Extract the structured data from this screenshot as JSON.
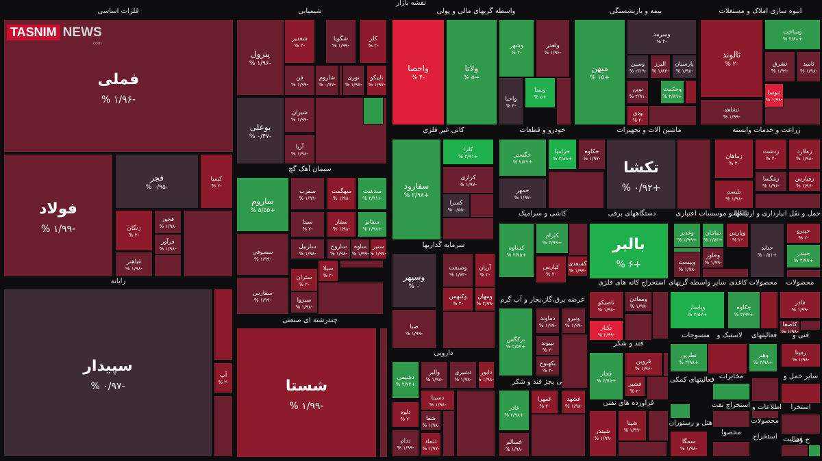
{
  "header": {
    "title": "نقشه بازار"
  },
  "logo": {
    "brand": "TASNIM",
    "suffix": "NEWS",
    "domain": ".com"
  },
  "colors": {
    "background": "#0d0d0f",
    "dark_red": "#6b1f2e",
    "red": "#8d1a2b",
    "bright_red": "#e0203a",
    "neutral": "#3d2b35",
    "green": "#2f9a4c",
    "bright_green": "#1fb04d"
  },
  "sectors": [
    {
      "label": "فلزات اساسی"
    },
    {
      "label": "شیمیایی"
    },
    {
      "label": "واسطه گریهای مالی و پولی"
    },
    {
      "label": "بیمه و بازنشستگی"
    },
    {
      "label": "انبوه سازی املاک و مستغلات"
    },
    {
      "label": "سیمان آهک گچ"
    },
    {
      "label": "کانی غیر فلزی"
    },
    {
      "label": "خودرو و قطعات"
    },
    {
      "label": "ماشین آلات و تجهیزات"
    },
    {
      "label": "زراعت و خدمات وابسته"
    },
    {
      "label": "رایانه"
    },
    {
      "label": "سرمایه گذاریها"
    },
    {
      "label": "کاشی و سرامیک"
    },
    {
      "label": "دستگاههای برقی"
    },
    {
      "label": "بانکها و موسسات اعتباری"
    },
    {
      "label": "حمل و نقل انبارداری و ارتباطات"
    },
    {
      "label": "چندرشته ای صنعتی"
    },
    {
      "label": "استخراج کانه های فلزی"
    },
    {
      "label": "سایر واسطه گریهای"
    },
    {
      "label": "محصولات کاغذی"
    },
    {
      "label": "محصولات"
    },
    {
      "label": "عرضه برق،گاز،بخار و آب گرم"
    },
    {
      "label": "قند و شکر"
    },
    {
      "label": "منسوجات"
    },
    {
      "label": "لاستیک و"
    },
    {
      "label": "فعالیتهای"
    },
    {
      "label": "فنی و"
    },
    {
      "label": "دارویی"
    },
    {
      "label": "غذایی بجز قند و شکر"
    },
    {
      "label": "فرآورده های نفتی"
    },
    {
      "label": "فعالیتهای کمکی"
    },
    {
      "label": "مخابرات"
    },
    {
      "label": "سایر حمل و"
    },
    {
      "label": "استخراج نفت"
    },
    {
      "label": "اطلاعات و"
    },
    {
      "label": "استخرا"
    },
    {
      "label": "محصوا"
    },
    {
      "label": "هتل و رستوران"
    },
    {
      "label": "محصولات"
    },
    {
      "label": "استخراج"
    },
    {
      "label": "فعالیت"
    },
    {
      "label": "خ وسا"
    }
  ],
  "tiles": [
    {
      "name": "فملی",
      "change": "-۱/۹۶ %"
    },
    {
      "name": "فولاد",
      "change": "-۱/۹۹ %"
    },
    {
      "name": "فجر",
      "change": "-۰/۹۵ %"
    },
    {
      "name": "کیمیا",
      "change": "-۲ %"
    },
    {
      "name": "زنگان",
      "change": "-۲ %"
    },
    {
      "name": "فخوز",
      "change": "-۱/۹۸ %"
    },
    {
      "name": "فرآور",
      "change": "-۱/۹۸ %"
    },
    {
      "name": "فباهنر",
      "change": "-۱/۹۸ %"
    },
    {
      "name": "سپیدار",
      "change": "-۰/۹۷ %"
    },
    {
      "name": "آپ",
      "change": "-۲ %"
    },
    {
      "name": "پترول",
      "change": "-۱/۹۶ %"
    },
    {
      "name": "شغدیر",
      "change": "-۲ %"
    },
    {
      "name": "شگویا",
      "change": "-۱/۹۹ %"
    },
    {
      "name": "کلر",
      "change": "-۲ %"
    },
    {
      "name": "فن",
      "change": "-۱/۹۹ %"
    },
    {
      "name": "شاروم",
      "change": "-۰/۷۷ %"
    },
    {
      "name": "نوری",
      "change": "-۱/۹۸ %"
    },
    {
      "name": "تاپیکو",
      "change": "-۱/۹۷ %"
    },
    {
      "name": "بوعلی",
      "change": "-۰/۴۷ %"
    },
    {
      "name": "شیران",
      "change": "-۱/۹۹ %"
    },
    {
      "name": "آریا",
      "change": "-۱/۹۸ %"
    },
    {
      "name": "ساروم",
      "change": "+۵/۵۵ %"
    },
    {
      "name": "سفرب",
      "change": "-۱/۹۹ %"
    },
    {
      "name": "سهگمت",
      "change": "-۱/۹۸ %"
    },
    {
      "name": "سدشت",
      "change": "+۲/۹۱ %"
    },
    {
      "name": "سیتا",
      "change": "-۲ %"
    },
    {
      "name": "سفار",
      "change": "-۱/۹۸ %"
    },
    {
      "name": "سفانو",
      "change": "+۲/۹۸ %"
    },
    {
      "name": "سصوفی",
      "change": "-۱/۹۹ %"
    },
    {
      "name": "ساربیل",
      "change": "-۱/۹۸ %"
    },
    {
      "name": "ساروج",
      "change": "-۱/۹۸ %"
    },
    {
      "name": "ساوه",
      "change": "-۱/۹۹ %"
    },
    {
      "name": "ستیر",
      "change": "-۱/۹۷ %"
    },
    {
      "name": "سفارس",
      "change": "-۱/۹۹ %"
    },
    {
      "name": "ستران",
      "change": "-۲ %"
    },
    {
      "name": "سیلا",
      "change": "-۲ %"
    },
    {
      "name": "سبزوا",
      "change": "-۱/۹۸ %"
    },
    {
      "name": "شستا",
      "change": "-۱/۹۹ %"
    },
    {
      "name": "واحصا",
      "change": "-۴ %"
    },
    {
      "name": "ولانا",
      "change": "+۵ %"
    },
    {
      "name": "وشهر",
      "change": "-۲ %"
    },
    {
      "name": "ولغدر",
      "change": "-۱/۹۶ %"
    },
    {
      "name": "واحیا",
      "change": "-۴ %"
    },
    {
      "name": "وسنا",
      "change": "+۵ %"
    },
    {
      "name": "میهن",
      "change": "+۱۵ %"
    },
    {
      "name": "وسرمد",
      "change": "-۲ %"
    },
    {
      "name": "وسین",
      "change": "-۲/۱۹ %"
    },
    {
      "name": "البرز",
      "change": "-۱/۸۳ %"
    },
    {
      "name": "پارسیان",
      "change": "-۱/۹۸ %"
    },
    {
      "name": "نوین",
      "change": "-۲/۹۱ %"
    },
    {
      "name": "وحکمت",
      "change": "+۲/۸۹ %"
    },
    {
      "name": "ودی",
      "change": "-۲ %"
    },
    {
      "name": "ثالوند",
      "change": "-۲ %"
    },
    {
      "name": "وساخت",
      "change": "+۲/۶۸ %"
    },
    {
      "name": "ثشرق",
      "change": "-۱/۹۹ %"
    },
    {
      "name": "ثامید",
      "change": "-۱/۹۸ %"
    },
    {
      "name": "ثشاهد",
      "change": "-۱/۹۹ %"
    },
    {
      "name": "ثنوسا",
      "change": "-۱/۹۸ %"
    },
    {
      "name": "سفارود",
      "change": "+۲/۹۸ %"
    },
    {
      "name": "کلرا",
      "change": "+۲/۹۱ %"
    },
    {
      "name": "کرازی",
      "change": "-۱/۹۷ %"
    },
    {
      "name": "کسرا",
      "change": "-۰/۵۵ %"
    },
    {
      "name": "خگستر",
      "change": "+۲/۴۷ %"
    },
    {
      "name": "خکرمان",
      "change": "+۲/۹۸ %"
    },
    {
      "name": "خزامیا",
      "change": "+۳/۸۸ %"
    },
    {
      "name": "خکاوه",
      "change": "-۱/۹۷ %"
    },
    {
      "name": "خمهر",
      "change": "-۱/۹۷ %"
    },
    {
      "name": "تکشا",
      "change": "+۰/۹۲ %"
    },
    {
      "name": "زماهان",
      "change": "-۲ %"
    },
    {
      "name": "زدشت",
      "change": "-۲ %"
    },
    {
      "name": "زملارد",
      "change": "-۱/۹۸ %"
    },
    {
      "name": "زمگسا",
      "change": "-۱/۹۶ %"
    },
    {
      "name": "زقیارس",
      "change": "-۱/۹۶ %"
    },
    {
      "name": "تلیسه",
      "change": "-۱/۹۸ %"
    },
    {
      "name": "وسپهر",
      "change": "۰ %"
    },
    {
      "name": "وصنعت",
      "change": "-۱/۷۳ %"
    },
    {
      "name": "آریان",
      "change": "-۲ %"
    },
    {
      "name": "وکبهمن",
      "change": "-۲ %"
    },
    {
      "name": "ومهان",
      "change": "-۲/۹۹ %"
    },
    {
      "name": "صبا",
      "change": "-۱/۹۹ %"
    },
    {
      "name": "کساوه",
      "change": "+۲/۷۵ %"
    },
    {
      "name": "کترام",
      "change": "+۲/۹۹ %"
    },
    {
      "name": "کسعدی",
      "change": "-۱/۹۹ %"
    },
    {
      "name": "کپارس",
      "change": "-۲ %"
    },
    {
      "name": "بالبر",
      "change": "+۶ %"
    },
    {
      "name": "حتاید",
      "change": "+۰/۵۱ %"
    },
    {
      "name": "حپترو",
      "change": "-۲ %"
    },
    {
      "name": "حبندر",
      "change": "+۲/۹۹ %"
    },
    {
      "name": "وغدیر",
      "change": "+۲/۹۹ %"
    },
    {
      "name": "سامان",
      "change": "+۲/۵۳ %"
    },
    {
      "name": "وپارس",
      "change": "-۲ %"
    },
    {
      "name": "ونوین",
      "change": "+۱/۹۵ %"
    },
    {
      "name": "وخاور",
      "change": "-۱/۹۹ %"
    },
    {
      "name": "وبیست",
      "change": "-۱/۹۸ %"
    },
    {
      "name": "وپاسار",
      "change": "+۲/۵۷ %"
    },
    {
      "name": "چکاوه",
      "change": "+۲/۹۹ %"
    },
    {
      "name": "فاذر",
      "change": "-۱/۹۹ %"
    },
    {
      "name": "کاصفا",
      "change": "-۱/۹۸ %"
    },
    {
      "name": "تاصیکو",
      "change": "-۱/۹۸ %"
    },
    {
      "name": "ومعادن",
      "change": "-۱/۹۹ %"
    },
    {
      "name": "تکنار",
      "change": "-۲/۹۹ %"
    },
    {
      "name": "برکگس",
      "change": "+۲/۵۹ %"
    },
    {
      "name": "دماوند",
      "change": "-۱/۹۹ %"
    },
    {
      "name": "ونیرو",
      "change": "-۱/۹۹ %"
    },
    {
      "name": "بپیوند",
      "change": "-۲ %"
    },
    {
      "name": "بکهنوج",
      "change": "-۲ %"
    },
    {
      "name": "قجار",
      "change": "+۲/۷۵ %"
    },
    {
      "name": "قزوین",
      "change": "-۱/۹۶ %"
    },
    {
      "name": "قشیر",
      "change": "-۲ %"
    },
    {
      "name": "نطرین",
      "change": "+۲/۹۸ %"
    },
    {
      "name": "وهنر",
      "change": "+۲/۹۸ %"
    },
    {
      "name": "رمپنا",
      "change": "-۱/۹۸ %"
    },
    {
      "name": "دشیمی",
      "change": "+۲/۷۲ %"
    },
    {
      "name": "والبر",
      "change": "-۱/۹۸ %"
    },
    {
      "name": "دشیری",
      "change": "-۱/۹۸ %"
    },
    {
      "name": "دابور",
      "change": "-۱/۹۸ %"
    },
    {
      "name": "دسینا",
      "change": "-۱/۹۸ %"
    },
    {
      "name": "دلوه",
      "change": "-۲ %"
    },
    {
      "name": "شفا",
      "change": "-۱/۹۸ %"
    },
    {
      "name": "ددام",
      "change": "-۱/۹۹ %"
    },
    {
      "name": "دتماد",
      "change": "-۱/۹۷ %"
    },
    {
      "name": "غاذر",
      "change": "+۲/۹۸ %"
    },
    {
      "name": "غمهرا",
      "change": "-۲ %"
    },
    {
      "name": "غشهد",
      "change": "-۱/۹۸ %"
    },
    {
      "name": "غسالم",
      "change": "-۱/۹۸ %"
    },
    {
      "name": "شبندر",
      "change": "-۱/۹۹ %"
    },
    {
      "name": "شپنا",
      "change": "-۱/۹۹ %"
    },
    {
      "name": "سمگا",
      "change": "-۱/۹۸ %"
    }
  ]
}
